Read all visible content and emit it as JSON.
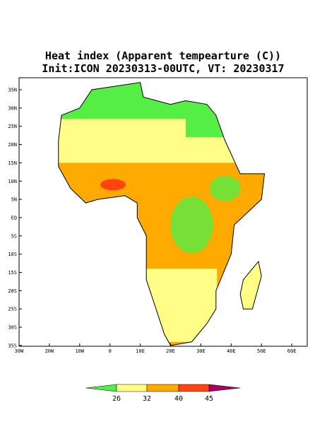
{
  "header": {
    "title": "Heat index (Apparent tempearture (C))",
    "subtitle": "Init:ICON 20230313-00UTC, VT: 20230317"
  },
  "map": {
    "lat_labels": [
      "35N",
      "30N",
      "25N",
      "20N",
      "15N",
      "10N",
      "5N",
      "EQ",
      "5S",
      "10S",
      "15S",
      "20S",
      "25S",
      "30S",
      "35S"
    ],
    "lon_labels": [
      "30W",
      "20W",
      "10W",
      "0",
      "10E",
      "20E",
      "30E",
      "40E",
      "50E",
      "60E"
    ]
  },
  "colorbar": {
    "ticks": [
      26,
      32,
      40,
      45
    ],
    "colors": [
      "#55ee44",
      "#ffff88",
      "#ffaa00",
      "#ff4411",
      "#aa0066"
    ]
  }
}
